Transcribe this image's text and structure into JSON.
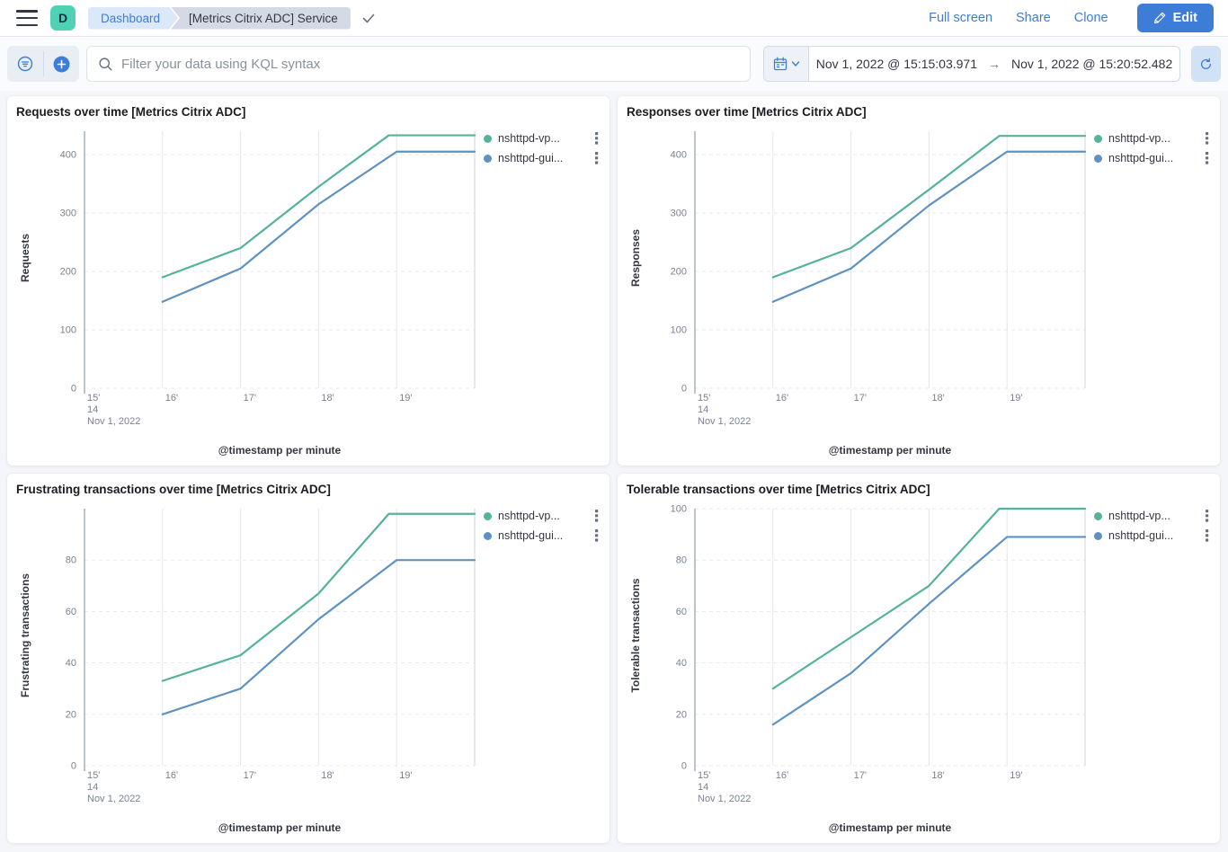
{
  "header": {
    "avatar_letter": "D",
    "breadcrumbs": {
      "first": "Dashboard",
      "second": "[Metrics Citrix ADC] Service"
    },
    "actions": {
      "full_screen": "Full screen",
      "share": "Share",
      "clone": "Clone",
      "edit": "Edit"
    }
  },
  "toolbar": {
    "search_placeholder": "Filter your data using KQL syntax",
    "date_from": "Nov 1, 2022 @ 15:15:03.971",
    "date_to": "Nov 1, 2022 @ 15:20:52.482"
  },
  "colors": {
    "series_green": "#54b399",
    "series_blue": "#6092c0",
    "accent_blue": "#3d7dd8",
    "grid_line": "#e4e7ed",
    "axis_line": "#a9b0bb",
    "edge_line": "#d8dce3",
    "tick_text": "#7a8190"
  },
  "chart_data": [
    {
      "type": "line",
      "title": "Requests over time [Metrics Citrix ADC]",
      "ylabel": "Requests",
      "xlabel": "@timestamp per minute",
      "x_domain": [
        15,
        20
      ],
      "x_tick_pos": [
        15,
        16,
        17,
        18,
        19
      ],
      "x_ticks": [
        "15'",
        "16'",
        "17'",
        "18'",
        "19'"
      ],
      "x_first_tick_sublabels": [
        "14",
        "Nov 1, 2022"
      ],
      "ylim": [
        0,
        440
      ],
      "y_ticks": [
        0,
        100,
        200,
        300,
        400
      ],
      "legend": [
        {
          "name": "nshttpd-vp...",
          "color": "#54b399"
        },
        {
          "name": "nshttpd-gui...",
          "color": "#6092c0"
        }
      ],
      "series": [
        {
          "name": "nshttpd-vp...",
          "color": "#54b399",
          "x": [
            16,
            17,
            18,
            18.9,
            20
          ],
          "y": [
            190,
            240,
            345,
            433,
            433
          ]
        },
        {
          "name": "nshttpd-gui...",
          "color": "#6092c0",
          "x": [
            16,
            17,
            18,
            19,
            20
          ],
          "y": [
            148,
            205,
            315,
            405,
            405
          ]
        }
      ]
    },
    {
      "type": "line",
      "title": "Responses over time [Metrics Citrix ADC]",
      "ylabel": "Responses",
      "xlabel": "@timestamp per minute",
      "x_domain": [
        15,
        20
      ],
      "x_tick_pos": [
        15,
        16,
        17,
        18,
        19
      ],
      "x_ticks": [
        "15'",
        "16'",
        "17'",
        "18'",
        "19'"
      ],
      "x_first_tick_sublabels": [
        "14",
        "Nov 1, 2022"
      ],
      "ylim": [
        0,
        440
      ],
      "y_ticks": [
        0,
        100,
        200,
        300,
        400
      ],
      "legend": [
        {
          "name": "nshttpd-vp...",
          "color": "#54b399"
        },
        {
          "name": "nshttpd-gui...",
          "color": "#6092c0"
        }
      ],
      "series": [
        {
          "name": "nshttpd-vp...",
          "color": "#54b399",
          "x": [
            16,
            17,
            18,
            18.9,
            20
          ],
          "y": [
            190,
            240,
            340,
            432,
            432
          ]
        },
        {
          "name": "nshttpd-gui...",
          "color": "#6092c0",
          "x": [
            16,
            17,
            18,
            19,
            20
          ],
          "y": [
            148,
            205,
            313,
            405,
            405
          ]
        }
      ]
    },
    {
      "type": "line",
      "title": "Frustrating transactions over time [Metrics Citrix ADC]",
      "ylabel": "Frustrating transactions",
      "xlabel": "@timestamp per minute",
      "x_domain": [
        15,
        20
      ],
      "x_tick_pos": [
        15,
        16,
        17,
        18,
        19
      ],
      "x_ticks": [
        "15'",
        "16'",
        "17'",
        "18'",
        "19'"
      ],
      "x_first_tick_sublabels": [
        "14",
        "Nov 1, 2022"
      ],
      "ylim": [
        0,
        100
      ],
      "y_ticks": [
        0,
        20,
        40,
        60,
        80
      ],
      "legend": [
        {
          "name": "nshttpd-vp...",
          "color": "#54b399"
        },
        {
          "name": "nshttpd-gui...",
          "color": "#6092c0"
        }
      ],
      "series": [
        {
          "name": "nshttpd-vp...",
          "color": "#54b399",
          "x": [
            16,
            17,
            18,
            18.9,
            20
          ],
          "y": [
            33,
            43,
            67,
            98,
            98
          ]
        },
        {
          "name": "nshttpd-gui...",
          "color": "#6092c0",
          "x": [
            16,
            17,
            18,
            19,
            20
          ],
          "y": [
            20,
            30,
            57,
            80,
            80
          ]
        }
      ]
    },
    {
      "type": "line",
      "title": "Tolerable transactions over time [Metrics Citrix ADC]",
      "ylabel": "Tolerable transactions",
      "xlabel": "@timestamp per minute",
      "x_domain": [
        15,
        20
      ],
      "x_tick_pos": [
        15,
        16,
        17,
        18,
        19
      ],
      "x_ticks": [
        "15'",
        "16'",
        "17'",
        "18'",
        "19'"
      ],
      "x_first_tick_sublabels": [
        "14",
        "Nov 1, 2022"
      ],
      "ylim": [
        0,
        100
      ],
      "y_ticks": [
        0,
        20,
        40,
        60,
        80,
        100
      ],
      "legend": [
        {
          "name": "nshttpd-vp...",
          "color": "#54b399"
        },
        {
          "name": "nshttpd-gui...",
          "color": "#6092c0"
        }
      ],
      "series": [
        {
          "name": "nshttpd-vp...",
          "color": "#54b399",
          "x": [
            16,
            17,
            18,
            18.9,
            20
          ],
          "y": [
            30,
            50,
            70,
            100,
            100
          ]
        },
        {
          "name": "nshttpd-gui...",
          "color": "#6092c0",
          "x": [
            16,
            17,
            18,
            19,
            20
          ],
          "y": [
            16,
            36,
            63,
            89,
            89
          ]
        }
      ]
    }
  ]
}
